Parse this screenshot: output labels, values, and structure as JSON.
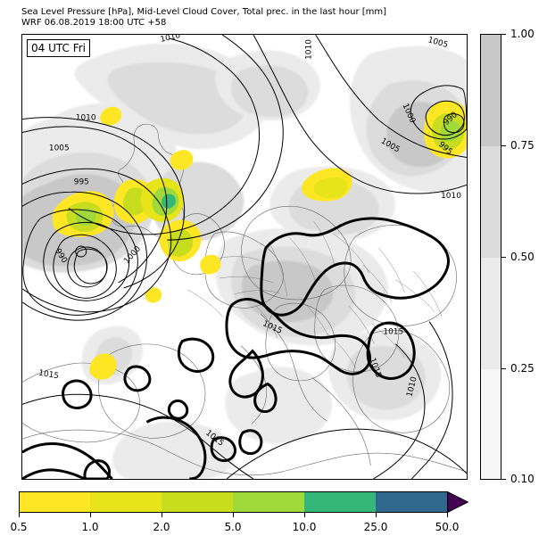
{
  "title": {
    "line1": "Sea Level Pressure [hPa], Mid-Level Cloud Cover, Total prec. in the last hour [mm]",
    "line2": "WRF 06.08.2019 18:00 UTC +58"
  },
  "time_box": "04 UTC Fri",
  "cloud_colorbar": {
    "ticks": [
      "1.00",
      "0.75",
      "0.50",
      "0.25",
      "0.10"
    ],
    "colors": [
      "#c8c8c8",
      "#dcdcdc",
      "#ebebeb",
      "#f7f7f7"
    ]
  },
  "precip_colorbar": {
    "ticks": [
      "0.5",
      "1.0",
      "2.0",
      "5.0",
      "10.0",
      "25.0",
      "50.0"
    ],
    "colors": [
      "#fde725",
      "#e7e419",
      "#c9dd1f",
      "#9fda3a",
      "#35b779",
      "#31688e",
      "#440154"
    ]
  },
  "pressure_labels": [
    "1010",
    "1010",
    "1005",
    "1010",
    "1005",
    "995",
    "990",
    "1000",
    "1000",
    "990",
    "995",
    "1005",
    "1010",
    "1015",
    "1015",
    "1015",
    "1015",
    "1015",
    "1010"
  ]
}
